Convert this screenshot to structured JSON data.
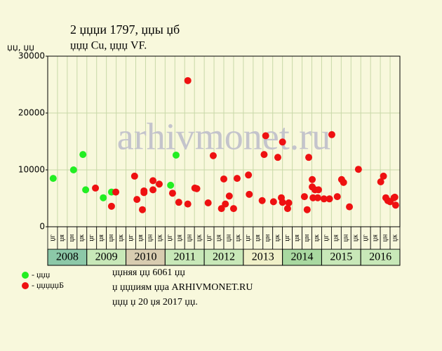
{
  "chart_data": {
    "type": "scatter",
    "title": "2 џџџи 1797, џџы џб",
    "subtitle": "џџџ Cu, џџџ VF.",
    "y_label": "џџ, џџ",
    "watermark": "arhivmonet.ru",
    "xlim": [
      2008,
      2017
    ],
    "ylim": [
      0,
      30000
    ],
    "yticks": [
      0,
      10000,
      20000,
      30000
    ],
    "grid": true,
    "years": [
      "2008",
      "2009",
      "2010",
      "2011",
      "2012",
      "2013",
      "2014",
      "2015",
      "2016"
    ],
    "year_colors": [
      "#8cc8a8",
      "#c8e8b8",
      "#d8ccb0",
      "#c8e8b8",
      "#c8e8b8",
      "#f0f0c8",
      "#a8d8a0",
      "#c8e8b8",
      "#c8e8b8"
    ],
    "quarter_labels": [
      "џг",
      "џя",
      "џн",
      "џк"
    ],
    "series": [
      {
        "name": "- џџџ",
        "color": "#22ee22",
        "x": [
          2008.14,
          2008.66,
          2008.9,
          2008.97,
          2009.42,
          2009.63,
          2011.14,
          2011.28
        ],
        "values": [
          8500,
          10000,
          12700,
          6500,
          5100,
          6100,
          7300,
          12600
        ]
      },
      {
        "name": "- џџџџџБ",
        "color": "#ee1111",
        "x": [
          2009.22,
          2009.63,
          2009.74,
          2010.22,
          2010.28,
          2010.42,
          2010.46,
          2010.46,
          2010.69,
          2010.69,
          2010.85,
          2011.19,
          2011.35,
          2011.58,
          2011.58,
          2011.76,
          2011.81,
          2012.1,
          2012.23,
          2012.44,
          2012.5,
          2012.54,
          2012.64,
          2012.75,
          2012.84,
          2013.13,
          2013.15,
          2013.48,
          2013.53,
          2013.57,
          2013.77,
          2013.88,
          2014.0,
          2013.97,
          2014.0,
          2014.13,
          2014.16,
          2014.56,
          2014.63,
          2014.67,
          2014.76,
          2014.76,
          2014.83,
          2014.78,
          2014.92,
          2014.9,
          2015.06,
          2015.2,
          2015.26,
          2015.4,
          2015.51,
          2015.56,
          2015.71,
          2015.94,
          2016.51,
          2016.58,
          2016.64,
          2016.69,
          2016.75,
          2016.85,
          2016.89,
          2016.87
        ],
        "values": [
          6800,
          3600,
          6100,
          8900,
          4800,
          3000,
          6300,
          6000,
          6500,
          8100,
          7500,
          5900,
          4300,
          25700,
          4000,
          6800,
          6700,
          4200,
          12500,
          3200,
          8400,
          4000,
          5400,
          3200,
          8500,
          9100,
          5700,
          4600,
          12700,
          16000,
          4400,
          12200,
          14900,
          5100,
          4300,
          3200,
          4200,
          5300,
          3000,
          12200,
          8300,
          7000,
          6500,
          5100,
          6500,
          5100,
          4900,
          4900,
          16200,
          5300,
          8300,
          7800,
          3500,
          10100,
          7900,
          8900,
          5100,
          4600,
          4400,
          5100,
          3800,
          5200
        ]
      }
    ],
    "notes": [
      "џџняя џџ 6061 џџ",
      "џ џџџиям џџа ARHIVMONET.RU",
      "џџџ џ 20 џя 2017 џџ."
    ]
  }
}
